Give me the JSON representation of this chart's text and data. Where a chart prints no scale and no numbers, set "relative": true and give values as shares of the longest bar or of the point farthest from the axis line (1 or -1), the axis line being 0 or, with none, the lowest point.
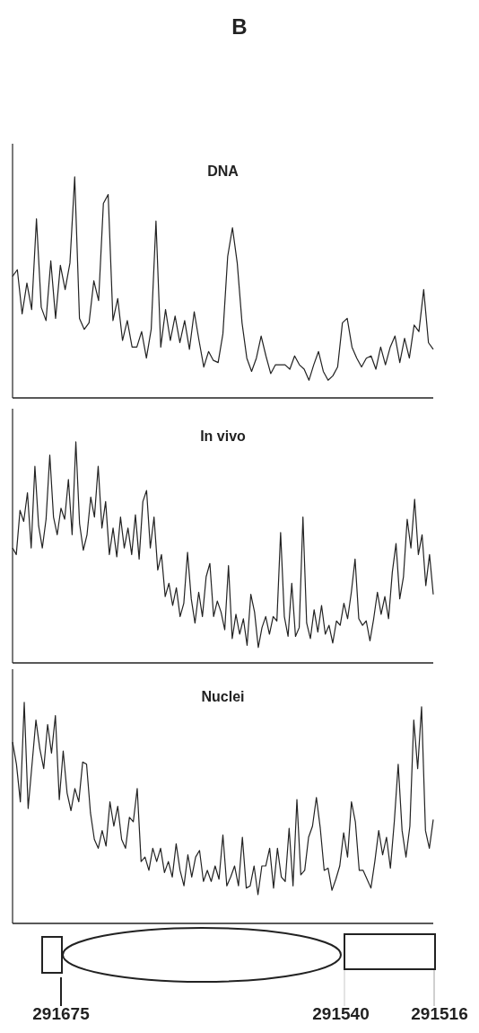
{
  "chart_data": [
    {
      "type": "line",
      "title": "DNA",
      "relative": true,
      "annotations": [
        "B"
      ],
      "categories": [
        null,
        null,
        null,
        null,
        null,
        null,
        null,
        null,
        null,
        null,
        null,
        null,
        null,
        null,
        null,
        null,
        null,
        null,
        null,
        null,
        null,
        null,
        null,
        null,
        null,
        null,
        null,
        null,
        null,
        null,
        null,
        null,
        null,
        null,
        null,
        null,
        null,
        null,
        null,
        null,
        null,
        null,
        null,
        null,
        null,
        null,
        null,
        null,
        null,
        null,
        null,
        null,
        null,
        null,
        null,
        null,
        null,
        null,
        null,
        null,
        null,
        null,
        null,
        null,
        null,
        null,
        null,
        null,
        null,
        null,
        null,
        null,
        null,
        null,
        null,
        null,
        null,
        null,
        null,
        null,
        null,
        null,
        null,
        null,
        null,
        null,
        null,
        null,
        null
      ],
      "series": [
        {
          "color": "#222222",
          "values": [
            0.55,
            0.58,
            0.38,
            0.52,
            0.4,
            0.81,
            0.41,
            0.35,
            0.62,
            0.36,
            0.6,
            0.49,
            0.61,
            1.0,
            0.36,
            0.31,
            0.34,
            0.53,
            0.44,
            0.88,
            0.92,
            0.35,
            0.45,
            0.26,
            0.35,
            0.23,
            0.23,
            0.3,
            0.18,
            0.31,
            0.8,
            0.23,
            0.4,
            0.26,
            0.37,
            0.25,
            0.35,
            0.22,
            0.39,
            0.26,
            0.14,
            0.21,
            0.17,
            0.16,
            0.29,
            0.64,
            0.77,
            0.61,
            0.34,
            0.18,
            0.12,
            0.18,
            0.28,
            0.19,
            0.11,
            0.15,
            0.15,
            0.15,
            0.13,
            0.19,
            0.15,
            0.13,
            0.08,
            0.15,
            0.21,
            0.12,
            0.08,
            0.1,
            0.14,
            0.34,
            0.36,
            0.23,
            0.18,
            0.14,
            0.18,
            0.19,
            0.13,
            0.23,
            0.15,
            0.23,
            0.28,
            0.16,
            0.27,
            0.18,
            0.33,
            0.3,
            0.49,
            0.25,
            0.22
          ]
        }
      ]
    },
    {
      "type": "line",
      "title": "In vivo",
      "relative": true,
      "categories": [
        null,
        null,
        null,
        null,
        null,
        null,
        null,
        null,
        null,
        null,
        null,
        null,
        null,
        null,
        null,
        null,
        null,
        null,
        null,
        null,
        null,
        null,
        null,
        null,
        null,
        null,
        null,
        null,
        null,
        null,
        null,
        null,
        null,
        null,
        null,
        null,
        null,
        null,
        null,
        null,
        null,
        null,
        null,
        null,
        null,
        null,
        null,
        null,
        null,
        null,
        null,
        null,
        null,
        null,
        null,
        null,
        null,
        null,
        null,
        null,
        null,
        null,
        null,
        null,
        null,
        null,
        null,
        null,
        null,
        null,
        null,
        null,
        null,
        null,
        null,
        null,
        null,
        null,
        null,
        null,
        null,
        null,
        null,
        null,
        null,
        null,
        null,
        null,
        null,
        null,
        null,
        null,
        null,
        null,
        null,
        null,
        null,
        null,
        null,
        null,
        null,
        null,
        null,
        null,
        null,
        null,
        null,
        null,
        null,
        null,
        null,
        null,
        null,
        null
      ],
      "series": [
        {
          "color": "#222222",
          "values": [
            0.52,
            0.49,
            0.69,
            0.64,
            0.77,
            0.52,
            0.89,
            0.62,
            0.52,
            0.65,
            0.94,
            0.66,
            0.58,
            0.7,
            0.65,
            0.83,
            0.58,
            1.0,
            0.63,
            0.51,
            0.58,
            0.75,
            0.66,
            0.89,
            0.61,
            0.73,
            0.49,
            0.61,
            0.48,
            0.66,
            0.52,
            0.61,
            0.49,
            0.67,
            0.47,
            0.73,
            0.78,
            0.52,
            0.66,
            0.42,
            0.49,
            0.3,
            0.36,
            0.26,
            0.34,
            0.21,
            0.27,
            0.5,
            0.29,
            0.18,
            0.32,
            0.21,
            0.39,
            0.45,
            0.21,
            0.28,
            0.23,
            0.15,
            0.44,
            0.11,
            0.22,
            0.13,
            0.2,
            0.08,
            0.31,
            0.23,
            0.07,
            0.16,
            0.21,
            0.13,
            0.21,
            0.19,
            0.59,
            0.21,
            0.12,
            0.36,
            0.12,
            0.16,
            0.66,
            0.18,
            0.11,
            0.24,
            0.14,
            0.26,
            0.13,
            0.17,
            0.09,
            0.19,
            0.17,
            0.27,
            0.2,
            0.32,
            0.47,
            0.2,
            0.17,
            0.19,
            0.1,
            0.2,
            0.32,
            0.22,
            0.3,
            0.2,
            0.41,
            0.54,
            0.29,
            0.39,
            0.65,
            0.52,
            0.74,
            0.49,
            0.58,
            0.35,
            0.49,
            0.31
          ]
        }
      ]
    },
    {
      "type": "line",
      "title": "Nuclei",
      "relative": true,
      "annotations": [
        "291675",
        "291540",
        "291516"
      ],
      "categories": [
        null,
        null,
        null,
        null,
        null,
        null,
        null,
        null,
        null,
        null,
        null,
        null,
        null,
        null,
        null,
        null,
        null,
        null,
        null,
        null,
        null,
        null,
        null,
        null,
        null,
        null,
        null,
        null,
        null,
        null,
        null,
        null,
        null,
        null,
        null,
        null,
        null,
        null,
        null,
        null,
        null,
        null,
        null,
        null,
        null,
        null,
        null,
        null,
        null,
        null,
        null,
        null,
        null,
        null,
        null,
        null,
        null,
        null,
        null,
        null,
        null,
        null,
        null,
        null,
        null,
        null,
        null,
        null,
        null,
        null,
        null,
        null,
        null,
        null,
        null,
        null,
        null,
        null,
        null,
        null,
        null,
        null,
        null,
        null,
        null,
        null,
        null,
        null,
        null,
        null,
        null,
        null,
        null,
        null,
        null,
        null,
        null,
        null,
        null,
        null,
        null,
        null,
        null,
        null,
        null,
        null,
        null,
        null,
        null
      ],
      "series": [
        {
          "color": "#222222",
          "values": [
            0.82,
            0.72,
            0.55,
            1.0,
            0.52,
            0.72,
            0.92,
            0.79,
            0.7,
            0.9,
            0.77,
            0.94,
            0.56,
            0.78,
            0.59,
            0.51,
            0.61,
            0.55,
            0.73,
            0.72,
            0.5,
            0.38,
            0.34,
            0.42,
            0.35,
            0.55,
            0.44,
            0.53,
            0.38,
            0.34,
            0.48,
            0.46,
            0.61,
            0.28,
            0.3,
            0.24,
            0.34,
            0.28,
            0.34,
            0.23,
            0.28,
            0.21,
            0.36,
            0.24,
            0.17,
            0.31,
            0.21,
            0.3,
            0.33,
            0.19,
            0.24,
            0.19,
            0.26,
            0.2,
            0.4,
            0.17,
            0.21,
            0.26,
            0.17,
            0.39,
            0.16,
            0.17,
            0.26,
            0.13,
            0.26,
            0.26,
            0.34,
            0.16,
            0.34,
            0.21,
            0.19,
            0.43,
            0.17,
            0.56,
            0.22,
            0.24,
            0.39,
            0.44,
            0.57,
            0.43,
            0.24,
            0.25,
            0.15,
            0.2,
            0.26,
            0.41,
            0.3,
            0.55,
            0.46,
            0.24,
            0.24,
            0.2,
            0.16,
            0.28,
            0.42,
            0.31,
            0.39,
            0.25,
            0.46,
            0.72,
            0.42,
            0.3,
            0.44,
            0.92,
            0.7,
            0.98,
            0.42,
            0.34,
            0.47
          ]
        }
      ]
    }
  ]
}
